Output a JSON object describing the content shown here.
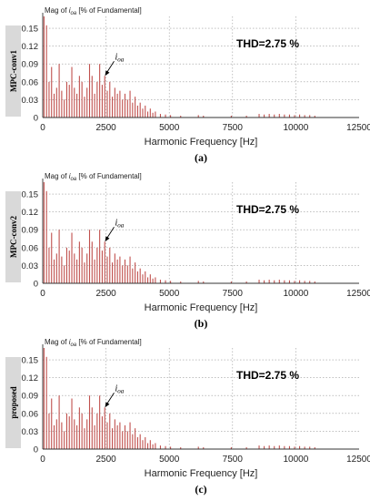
{
  "chart_data": [
    {
      "type": "bar",
      "panel_label": "MPC-conv1",
      "ytitle": "Mag of i_oa [% of Fundamental]",
      "ytitle_var": "i",
      "ytitle_sub": "oa",
      "ytitle_prefix": "Mag of ",
      "ytitle_suffix": " [% of Fundamental]",
      "xlabel": "Harmonic Frequency [Hz]",
      "caption": "(a)",
      "annotation": "THD=2.75 %",
      "arrow_label_var": "i",
      "arrow_label_sub": "oa",
      "xlim": [
        0,
        12500
      ],
      "ylim": [
        0,
        0.17
      ],
      "xticks": [
        "0",
        "2500",
        "5000",
        "7500",
        "10000",
        "12500"
      ],
      "yticks": [
        "0",
        "0.03",
        "0.06",
        "0.09",
        "0.12",
        "0.15"
      ],
      "grid": true,
      "color": "#c0504d"
    },
    {
      "type": "bar",
      "panel_label": "MPC-conv2",
      "ytitle_prefix": "Mag of ",
      "ytitle_var": "i",
      "ytitle_sub": "oa",
      "ytitle_suffix": " [% of Fundamental]",
      "xlabel": "Harmonic Frequency [Hz]",
      "caption": "(b)",
      "annotation": "THD=2.75 %",
      "arrow_label_var": "i",
      "arrow_label_sub": "oa",
      "xlim": [
        0,
        12500
      ],
      "ylim": [
        0,
        0.17
      ],
      "xticks": [
        "0",
        "2500",
        "5000",
        "7500",
        "10000",
        "12500"
      ],
      "yticks": [
        "0",
        "0.03",
        "0.06",
        "0.09",
        "0.12",
        "0.15"
      ],
      "grid": true,
      "color": "#c0504d"
    },
    {
      "type": "bar",
      "panel_label": "proposed",
      "ytitle_prefix": "Mag of ",
      "ytitle_var": "i",
      "ytitle_sub": "oa",
      "ytitle_suffix": " [% of Fundamental]",
      "xlabel": "Harmonic Frequency [Hz]",
      "caption": "(c)",
      "annotation": "THD=2.75 %",
      "arrow_label_var": "i",
      "arrow_label_sub": "oa",
      "xlim": [
        0,
        12500
      ],
      "ylim": [
        0,
        0.17
      ],
      "xticks": [
        "0",
        "2500",
        "5000",
        "7500",
        "10000",
        "12500"
      ],
      "yticks": [
        "0",
        "0.03",
        "0.06",
        "0.09",
        "0.12",
        "0.15"
      ],
      "grid": true,
      "color": "#c0504d"
    }
  ],
  "spectrum_points": [
    [
      50,
      0.17
    ],
    [
      150,
      0.155
    ],
    [
      250,
      0.06
    ],
    [
      350,
      0.085
    ],
    [
      450,
      0.04
    ],
    [
      550,
      0.05
    ],
    [
      650,
      0.09
    ],
    [
      750,
      0.045
    ],
    [
      850,
      0.03
    ],
    [
      950,
      0.06
    ],
    [
      1050,
      0.055
    ],
    [
      1150,
      0.085
    ],
    [
      1250,
      0.05
    ],
    [
      1350,
      0.04
    ],
    [
      1450,
      0.07
    ],
    [
      1550,
      0.06
    ],
    [
      1650,
      0.035
    ],
    [
      1750,
      0.05
    ],
    [
      1850,
      0.09
    ],
    [
      1950,
      0.07
    ],
    [
      2050,
      0.04
    ],
    [
      2150,
      0.06
    ],
    [
      2250,
      0.09
    ],
    [
      2350,
      0.055
    ],
    [
      2450,
      0.07
    ],
    [
      2550,
      0.045
    ],
    [
      2650,
      0.06
    ],
    [
      2750,
      0.035
    ],
    [
      2850,
      0.05
    ],
    [
      2950,
      0.04
    ],
    [
      3050,
      0.045
    ],
    [
      3150,
      0.03
    ],
    [
      3250,
      0.04
    ],
    [
      3350,
      0.03
    ],
    [
      3450,
      0.045
    ],
    [
      3550,
      0.025
    ],
    [
      3650,
      0.035
    ],
    [
      3750,
      0.02
    ],
    [
      3850,
      0.025
    ],
    [
      3950,
      0.015
    ],
    [
      4050,
      0.02
    ],
    [
      4150,
      0.01
    ],
    [
      4250,
      0.015
    ],
    [
      4350,
      0.008
    ],
    [
      4450,
      0.01
    ],
    [
      4650,
      0.006
    ],
    [
      4850,
      0.005
    ],
    [
      5050,
      0.004
    ],
    [
      5450,
      0.003
    ],
    [
      6150,
      0.004
    ],
    [
      6350,
      0.003
    ],
    [
      7450,
      0.003
    ],
    [
      8050,
      0.003
    ],
    [
      8550,
      0.006
    ],
    [
      8750,
      0.005
    ],
    [
      8950,
      0.006
    ],
    [
      9150,
      0.005
    ],
    [
      9350,
      0.006
    ],
    [
      9550,
      0.005
    ],
    [
      9750,
      0.005
    ],
    [
      9950,
      0.004
    ],
    [
      10150,
      0.005
    ],
    [
      10350,
      0.004
    ],
    [
      10550,
      0.004
    ],
    [
      10750,
      0.003
    ]
  ]
}
